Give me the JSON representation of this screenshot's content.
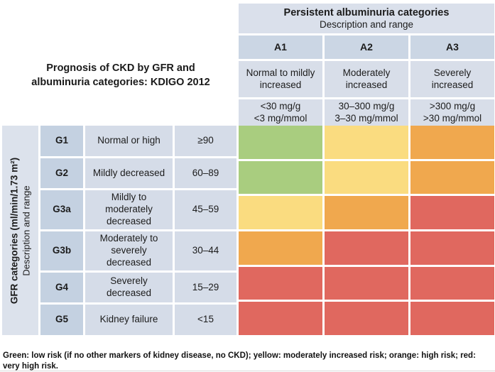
{
  "title": {
    "line1": "Prognosis of CKD by GFR and",
    "line2": "albuminuria categories: KDIGO 2012"
  },
  "albuminuria": {
    "header": "Persistent albuminuria categories",
    "subheader": "Description and range",
    "columns": [
      {
        "code": "A1",
        "description": "Normal to mildly increased",
        "range_mg_g": "<30 mg/g",
        "range_mg_mmol": "<3 mg/mmol"
      },
      {
        "code": "A2",
        "description": "Moderately increased",
        "range_mg_g": "30–300 mg/g",
        "range_mg_mmol": "3–30 mg/mmol"
      },
      {
        "code": "A3",
        "description": "Severely increased",
        "range_mg_g": ">300 mg/g",
        "range_mg_mmol": ">30 mg/mmol"
      }
    ]
  },
  "gfr": {
    "axis_label_bold": "GFR categories (ml/min/1.73 m²)",
    "axis_label_regular": "Description and range",
    "rows": [
      {
        "code": "G1",
        "description": "Normal or high",
        "range": "≥90"
      },
      {
        "code": "G2",
        "description": "Mildly decreased",
        "range": "60–89"
      },
      {
        "code": "G3a",
        "description": "Mildly to moderately decreased",
        "range": "45–59"
      },
      {
        "code": "G3b",
        "description": "Moderately to severely decreased",
        "range": "30–44"
      },
      {
        "code": "G4",
        "description": "Severely decreased",
        "range": "15–29"
      },
      {
        "code": "G5",
        "description": "Kidney failure",
        "range": "<15"
      }
    ]
  },
  "risk_matrix": {
    "rows": [
      [
        "green",
        "yellow",
        "orange"
      ],
      [
        "green",
        "yellow",
        "orange"
      ],
      [
        "yellow",
        "orange",
        "red"
      ],
      [
        "orange",
        "red",
        "red"
      ],
      [
        "red",
        "red",
        "red"
      ],
      [
        "red",
        "red",
        "red"
      ]
    ]
  },
  "colors": {
    "green": "#a9cd7f",
    "yellow": "#fadc80",
    "orange": "#f0a84e",
    "red": "#e0685f",
    "header_blue": "#dae0eb",
    "label_blue": "#c4d1e1"
  },
  "footnote": "Green: low risk (if no other markers of kidney disease, no CKD); yellow: moderately increased risk; orange: high risk; red: very high risk.",
  "chart_data": {
    "type": "heatmap",
    "title": "Prognosis of CKD by GFR and albuminuria categories: KDIGO 2012",
    "x_categories": [
      "A1",
      "A2",
      "A3"
    ],
    "x_axis_label": "Persistent albuminuria categories — Description and range",
    "y_categories": [
      "G1",
      "G2",
      "G3a",
      "G3b",
      "G4",
      "G5"
    ],
    "y_axis_label": "GFR categories (ml/min/1.73 m²) — Description and range",
    "values": [
      [
        "green",
        "yellow",
        "orange"
      ],
      [
        "green",
        "yellow",
        "orange"
      ],
      [
        "yellow",
        "orange",
        "red"
      ],
      [
        "orange",
        "red",
        "red"
      ],
      [
        "red",
        "red",
        "red"
      ],
      [
        "red",
        "red",
        "red"
      ]
    ],
    "value_legend": {
      "green": "low risk (if no other markers of kidney disease, no CKD)",
      "yellow": "moderately increased risk",
      "orange": "high risk",
      "red": "very high risk"
    }
  }
}
